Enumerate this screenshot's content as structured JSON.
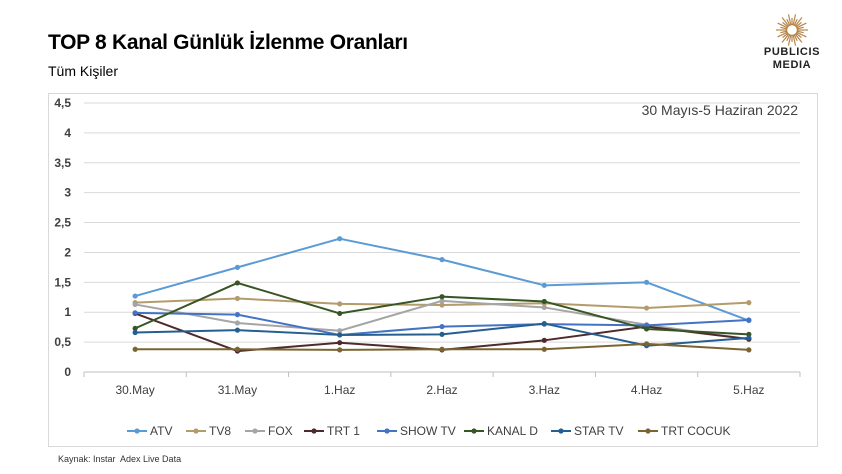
{
  "header": {
    "title": "TOP 8 Kanal Günlük İzlenme Oranları",
    "subtitle": "Tüm Kişiler"
  },
  "logo": {
    "line1": "PUBLICIS",
    "line2": "MEDIA",
    "accent_color": "#b8864b"
  },
  "footnote": "Kaynak: Instar  Adex Live Data",
  "chart_data": {
    "type": "line",
    "annotation": "30 Mayıs-5 Haziran 2022",
    "categories": [
      "30.May",
      "31.May",
      "1.Haz",
      "2.Haz",
      "3.Haz",
      "4.Haz",
      "5.Haz"
    ],
    "ylim": [
      0,
      4.5
    ],
    "yticks": [
      0,
      0.5,
      1,
      1.5,
      2,
      2.5,
      3,
      3.5,
      4,
      4.5
    ],
    "ytick_labels": [
      "0",
      "0,5",
      "1",
      "1,5",
      "2",
      "2,5",
      "3",
      "3,5",
      "4",
      "4,5"
    ],
    "grid": true,
    "legend": "bottom",
    "series": [
      {
        "name": "ATV",
        "color": "#5b9bd5",
        "values": [
          1.27,
          1.75,
          2.23,
          1.88,
          1.45,
          1.5,
          0.86
        ]
      },
      {
        "name": "TV8",
        "color": "#b39c6b",
        "values": [
          1.16,
          1.23,
          1.14,
          1.12,
          1.15,
          1.07,
          1.16
        ]
      },
      {
        "name": "FOX",
        "color": "#a5a5a5",
        "values": [
          1.13,
          0.82,
          0.69,
          1.19,
          1.08,
          0.79,
          0.55
        ]
      },
      {
        "name": "TRT 1",
        "color": "#4f2a2a",
        "values": [
          0.98,
          0.35,
          0.49,
          0.37,
          0.53,
          0.76,
          0.55
        ]
      },
      {
        "name": "SHOW TV",
        "color": "#4472c4",
        "values": [
          0.99,
          0.96,
          0.62,
          0.76,
          0.8,
          0.78,
          0.87
        ]
      },
      {
        "name": "KANAL D",
        "color": "#375623",
        "values": [
          0.73,
          1.49,
          0.98,
          1.26,
          1.18,
          0.72,
          0.63
        ]
      },
      {
        "name": "STAR TV",
        "color": "#255e91",
        "values": [
          0.66,
          0.7,
          0.62,
          0.63,
          0.81,
          0.44,
          0.57
        ]
      },
      {
        "name": "TRT COCUK",
        "color": "#7a6431",
        "values": [
          0.38,
          0.38,
          0.37,
          0.38,
          0.38,
          0.47,
          0.37
        ]
      }
    ]
  }
}
